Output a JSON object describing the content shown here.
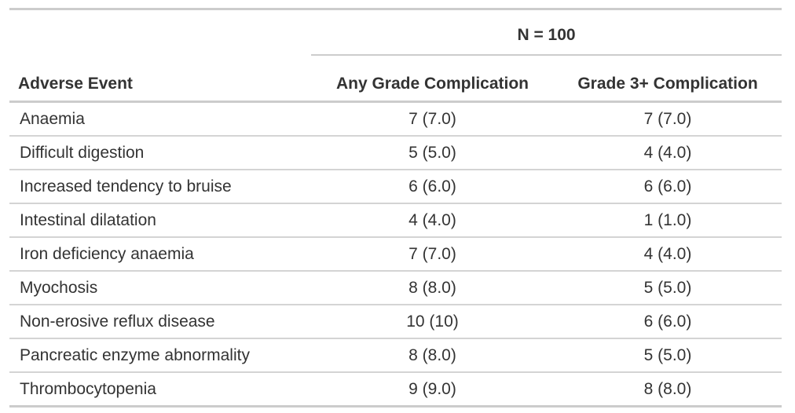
{
  "chart_data": {
    "type": "table",
    "spanner": "N = 100",
    "n_total": 100,
    "columns": [
      "Adverse Event",
      "Any Grade Complication",
      "Grade 3+ Complication"
    ],
    "rows": [
      [
        "Anaemia",
        "7 (7.0)",
        "7 (7.0)"
      ],
      [
        "Difficult digestion",
        "5 (5.0)",
        "4 (4.0)"
      ],
      [
        "Increased tendency to bruise",
        "6 (6.0)",
        "6 (6.0)"
      ],
      [
        "Intestinal dilatation",
        "4 (4.0)",
        "1 (1.0)"
      ],
      [
        "Iron deficiency anaemia",
        "7 (7.0)",
        "4 (4.0)"
      ],
      [
        "Myochosis",
        "8 (8.0)",
        "5 (5.0)"
      ],
      [
        "Non-erosive reflux disease",
        "10 (10)",
        "6 (6.0)"
      ],
      [
        "Pancreatic enzyme abnormality",
        "8 (8.0)",
        "5 (5.0)"
      ],
      [
        "Thrombocytopenia",
        "9 (9.0)",
        "8 (8.0)"
      ]
    ],
    "series": [
      {
        "name": "Any Grade Complication",
        "counts": [
          7,
          5,
          6,
          4,
          7,
          8,
          10,
          8,
          9
        ],
        "percents": [
          7.0,
          5.0,
          6.0,
          4.0,
          7.0,
          8.0,
          10.0,
          8.0,
          9.0
        ]
      },
      {
        "name": "Grade 3+ Complication",
        "counts": [
          7,
          4,
          6,
          1,
          4,
          5,
          6,
          5,
          8
        ],
        "percents": [
          7.0,
          4.0,
          6.0,
          1.0,
          4.0,
          5.0,
          6.0,
          5.0,
          8.0
        ]
      }
    ],
    "value_format": "n (%)",
    "layout": {
      "stat_columns_alignment": "center",
      "event_column_alignment": "left"
    },
    "colors": {
      "text": "#333333",
      "border_heavy": "#cccccc",
      "border_light": "#d4d4d4",
      "background": "#ffffff"
    }
  }
}
